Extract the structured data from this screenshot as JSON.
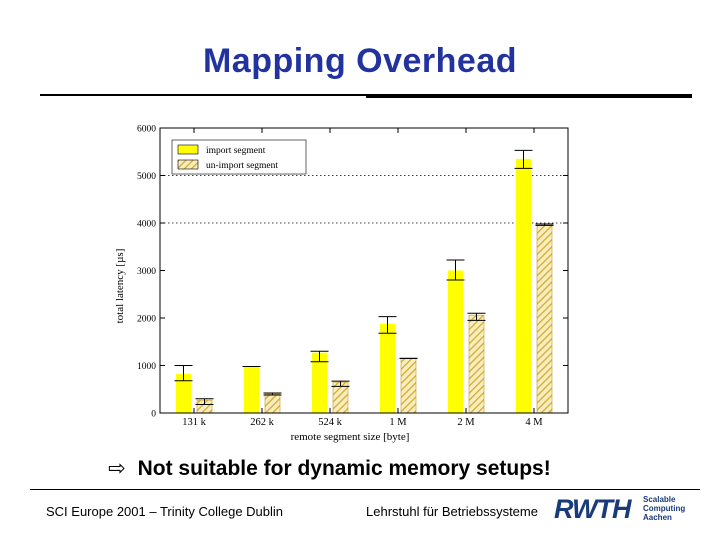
{
  "slide": {
    "title": "Mapping Overhead",
    "bullet": "Not suitable for dynamic memory setups!",
    "bullet_arrow": "⇨",
    "footer_left": "SCI Europe 2001 – Trinity College Dublin",
    "footer_right": "Lehrstuhl für Betriebssysteme",
    "logo": {
      "word": "RWTH",
      "lines": [
        "Scalable",
        "Computing",
        "Aachen"
      ],
      "color": "#1a3b7a"
    },
    "title_color": "#2233a0"
  },
  "chart_data": {
    "type": "bar",
    "categories": [
      "131 k",
      "262 k",
      "524 k",
      "1 M",
      "2 M",
      "4 M"
    ],
    "xlabel": "remote segment size [byte]",
    "ylabel": "total latency [µs]",
    "ylim": [
      0,
      6000
    ],
    "yticks": [
      0,
      1000,
      2000,
      3000,
      4000,
      5000,
      6000
    ],
    "grid": "dotted horizontal at 4000 and 5000",
    "legend_position": "top-left",
    "series": [
      {
        "name": "import segment",
        "color": "#ffff00",
        "pattern": "solid",
        "values": [
          820,
          980,
          1270,
          1880,
          3000,
          5350
        ],
        "err_low": [
          680,
          980,
          1080,
          1680,
          2800,
          5150
        ],
        "err_high": [
          1000,
          980,
          1300,
          2030,
          3220,
          5530
        ]
      },
      {
        "name": "un-import segment",
        "color": "#e8c040",
        "pattern": "hatched",
        "values": [
          270,
          400,
          650,
          1150,
          2060,
          3950
        ],
        "err_low": [
          180,
          380,
          560,
          1150,
          1950,
          3950
        ],
        "err_high": [
          300,
          420,
          670,
          1150,
          2100,
          3980
        ]
      }
    ]
  }
}
